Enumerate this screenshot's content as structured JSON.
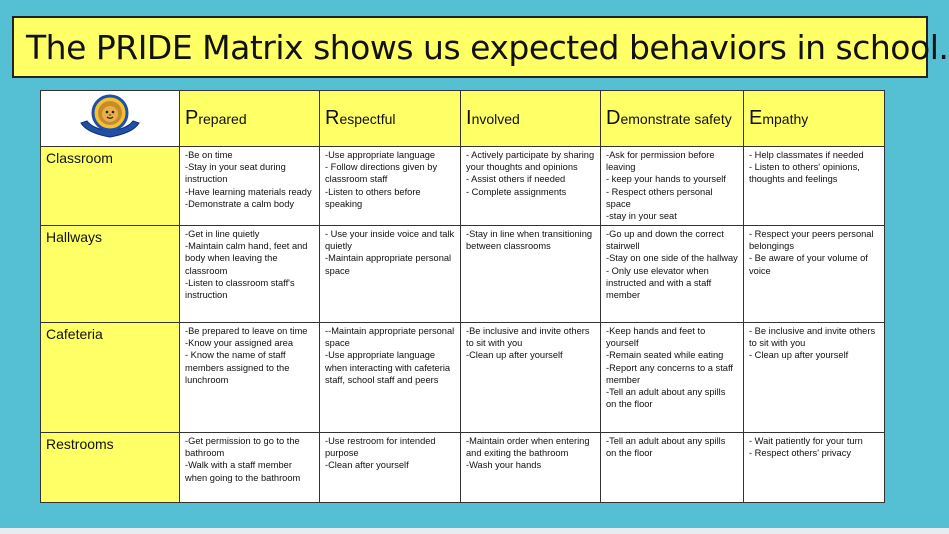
{
  "title": "The PRIDE Matrix shows us expected behaviors in school.",
  "columns": [
    {
      "cap": "P",
      "rest": "repared"
    },
    {
      "cap": "R",
      "rest": "espectful"
    },
    {
      "cap": "I",
      "rest": "nvolved"
    },
    {
      "cap": "D",
      "rest": "emonstrate safety"
    },
    {
      "cap": "E",
      "rest": "mpathy"
    }
  ],
  "rows": [
    {
      "label": "Classroom",
      "cells": [
        [
          "-Be on time",
          "-Stay in your seat during instruction",
          "-Have learning materials ready",
          "-Demonstrate a calm body"
        ],
        [
          "-Use appropriate language",
          "- Follow directions given by classroom staff",
          "-Listen to others before speaking"
        ],
        [
          "- Actively participate by sharing your thoughts and opinions",
          "- Assist others if needed",
          "- Complete assignments"
        ],
        [
          "-Ask for permission before leaving",
          "- keep your hands to yourself",
          "- Respect others personal space",
          "-stay in your seat"
        ],
        [
          "- Help classmates if needed",
          "- Listen to others' opinions, thoughts and feelings"
        ]
      ]
    },
    {
      "label": "Hallways",
      "cells": [
        [
          "-Get in line quietly",
          "-Maintain calm hand, feet and body when leaving the classroom",
          "-Listen to classroom staff's instruction"
        ],
        [
          "- Use your inside voice and talk quietly",
          "-Maintain appropriate personal space"
        ],
        [
          "-Stay in line when transitioning between classrooms"
        ],
        [
          "-Go up and down the correct stairwell",
          "-Stay on one side of the hallway",
          "- Only use elevator when instructed and with a staff member"
        ],
        [
          "- Respect your peers personal belongings",
          "- Be aware of your volume of voice"
        ]
      ]
    },
    {
      "label": "Cafeteria",
      "cells": [
        [
          "-Be prepared to leave on time",
          "-Know your assigned area",
          "- Know the name of staff members assigned to the lunchroom"
        ],
        [
          "--Maintain appropriate personal space",
          "-Use appropriate language when interacting with cafeteria staff, school staff and peers"
        ],
        [
          "-Be inclusive and invite others to sit with you",
          "-Clean up after yourself"
        ],
        [
          "-Keep hands and feet to yourself",
          "-Remain seated while eating",
          "-Report any concerns to a staff member",
          "-Tell an adult about any spills on the floor"
        ],
        [
          "- Be inclusive and invite others to sit with you",
          "- Clean up after yourself"
        ]
      ]
    },
    {
      "label": "Restrooms",
      "cells": [
        [
          "-Get permission to go to the bathroom",
          "-Walk with a staff member when going to the bathroom"
        ],
        [
          "-Use restroom for intended purpose",
          "-Clean after yourself"
        ],
        [
          "-Maintain order when entering and exiting the bathroom",
          "-Wash your hands"
        ],
        [
          "-Tell an adult about any spills on the floor"
        ],
        [
          "- Wait patiently for your turn",
          "- Respect others' privacy"
        ]
      ]
    }
  ],
  "colors": {
    "background": "#55bfd3",
    "highlight": "#ffff66"
  },
  "logo": {
    "icon": "lion-crest-icon"
  }
}
